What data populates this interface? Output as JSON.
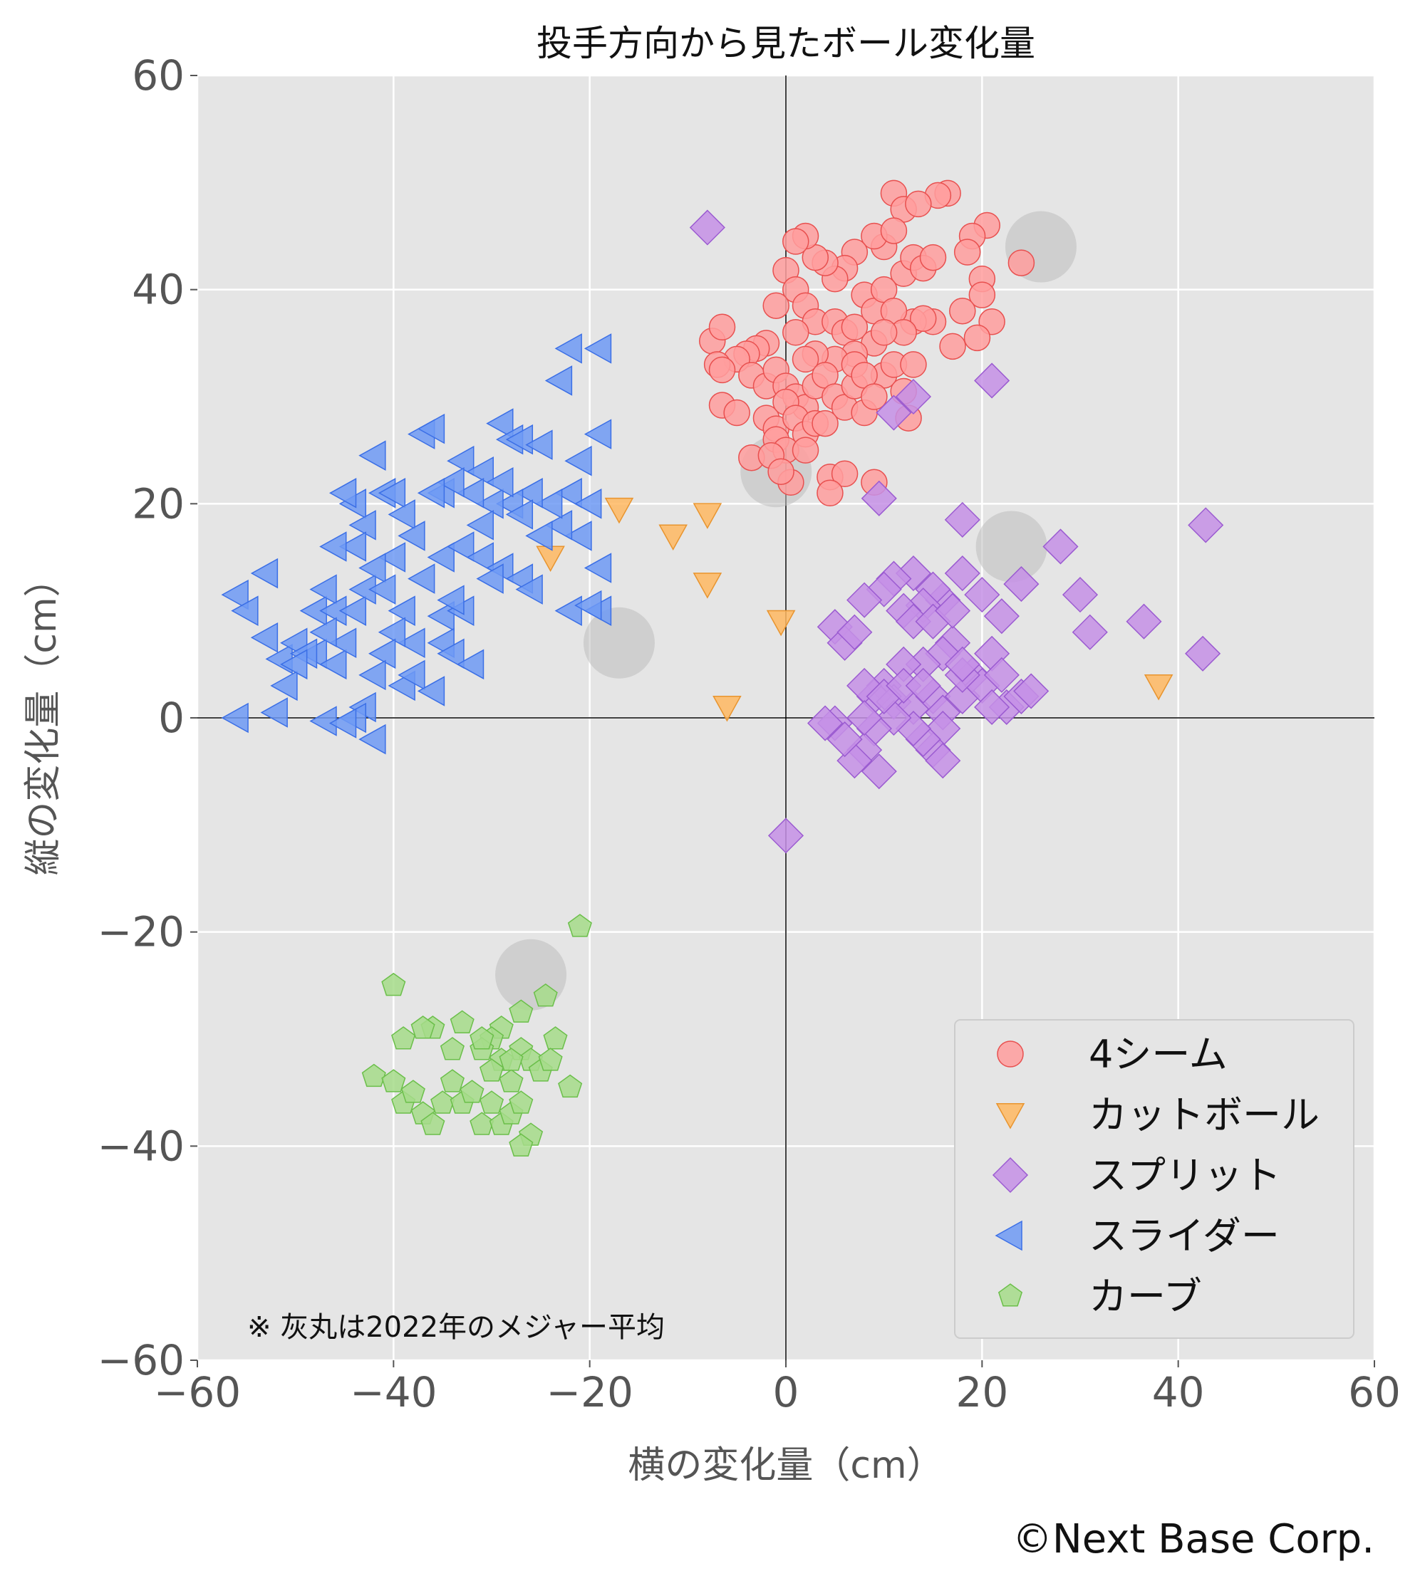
{
  "chart_data": {
    "type": "scatter",
    "title": "投手方向から見たボール変化量",
    "xlabel": "横の変化量（cm）",
    "ylabel": "縦の変化量（cm）",
    "xlim": [
      -60,
      60
    ],
    "ylim": [
      -60,
      60
    ],
    "xticks": [
      -60,
      -40,
      -20,
      0,
      20,
      40,
      60
    ],
    "yticks": [
      -60,
      -40,
      -20,
      0,
      20,
      40,
      60
    ],
    "xtick_labels": [
      "−60",
      "−40",
      "−20",
      "0",
      "20",
      "40",
      "60"
    ],
    "ytick_labels": [
      "−60",
      "−40",
      "−20",
      "0",
      "20",
      "40",
      "60"
    ],
    "grid": true,
    "legend_position": "bottom-right",
    "annotation": "※ 灰丸は2022年のメジャー平均",
    "credit": "©Next Base Corp.",
    "league_average": {
      "color": "#bdbdbd",
      "points": [
        [
          26,
          44
        ],
        [
          23,
          16
        ],
        [
          -1,
          23
        ],
        [
          -17,
          7
        ],
        [
          -26,
          -24
        ]
      ]
    },
    "series": [
      {
        "name": "4シーム",
        "marker": "circle",
        "fill": "#ff9e9e",
        "edge": "#e8504f",
        "points": [
          [
            24,
            42.5
          ],
          [
            16.5,
            49
          ],
          [
            15.5,
            48.8
          ],
          [
            11,
            49
          ],
          [
            12,
            47.5
          ],
          [
            13.5,
            48
          ],
          [
            20.5,
            46
          ],
          [
            19,
            45
          ],
          [
            18.5,
            43.5
          ],
          [
            20,
            41
          ],
          [
            20,
            39.5
          ],
          [
            21,
            37
          ],
          [
            19.5,
            35.5
          ],
          [
            17,
            34.7
          ],
          [
            18,
            38
          ],
          [
            15,
            37
          ],
          [
            13,
            37
          ],
          [
            14,
            37.3
          ],
          [
            12,
            41.5
          ],
          [
            13,
            43
          ],
          [
            14,
            42
          ],
          [
            15,
            43
          ],
          [
            10,
            44
          ],
          [
            9,
            45
          ],
          [
            11,
            45.5
          ],
          [
            7,
            43.5
          ],
          [
            6,
            42
          ],
          [
            5,
            41
          ],
          [
            4,
            42.5
          ],
          [
            3,
            43
          ],
          [
            2,
            45
          ],
          [
            1,
            44.5
          ],
          [
            0,
            41.8
          ],
          [
            1,
            40
          ],
          [
            -1,
            38.5
          ],
          [
            2,
            38.5
          ],
          [
            3,
            37
          ],
          [
            5,
            37
          ],
          [
            6,
            36
          ],
          [
            7,
            36.5
          ],
          [
            8,
            39.5
          ],
          [
            9,
            38
          ],
          [
            10,
            40
          ],
          [
            11,
            38
          ],
          [
            12,
            36
          ],
          [
            9,
            35
          ],
          [
            7,
            34
          ],
          [
            5,
            33.5
          ],
          [
            3,
            34
          ],
          [
            1,
            36
          ],
          [
            2,
            33.5
          ],
          [
            -2,
            35
          ],
          [
            -3,
            34.5
          ],
          [
            -4,
            34
          ],
          [
            -5,
            33.5
          ],
          [
            -7.5,
            35.2
          ],
          [
            -6.5,
            36.5
          ],
          [
            -7,
            33
          ],
          [
            -6.5,
            32.5
          ],
          [
            -3.5,
            32
          ],
          [
            -2,
            31
          ],
          [
            -1,
            32.5
          ],
          [
            0,
            31
          ],
          [
            1,
            30
          ],
          [
            2,
            29
          ],
          [
            3,
            31
          ],
          [
            4,
            32
          ],
          [
            5,
            30
          ],
          [
            6,
            29
          ],
          [
            7,
            31
          ],
          [
            8,
            28.5
          ],
          [
            10,
            32
          ],
          [
            11,
            33
          ],
          [
            12,
            30.5
          ],
          [
            12.5,
            28
          ],
          [
            -6.5,
            29.2
          ],
          [
            -5,
            28.5
          ],
          [
            -2,
            28
          ],
          [
            -1,
            27
          ],
          [
            0,
            29.5
          ],
          [
            1,
            28
          ],
          [
            2,
            26.5
          ],
          [
            3,
            27.5
          ],
          [
            4,
            27.5
          ],
          [
            -1,
            26
          ],
          [
            0,
            25
          ],
          [
            2,
            25
          ],
          [
            -3.5,
            24.3
          ],
          [
            -1.5,
            24.5
          ],
          [
            4.5,
            22.5
          ],
          [
            6,
            22.8
          ],
          [
            4.5,
            21
          ],
          [
            9,
            22
          ],
          [
            0.5,
            22
          ],
          [
            -0.5,
            23
          ],
          [
            7,
            33
          ],
          [
            8,
            32
          ],
          [
            9,
            30
          ],
          [
            13,
            33
          ],
          [
            10,
            36
          ]
        ]
      },
      {
        "name": "カットボール",
        "marker": "triangle-down",
        "fill": "#ffb861",
        "edge": "#e8942e",
        "points": [
          [
            -17,
            19.5
          ],
          [
            -11.5,
            17
          ],
          [
            -8,
            19
          ],
          [
            -8,
            12.5
          ],
          [
            -24,
            15
          ],
          [
            -0.5,
            9
          ],
          [
            -6,
            1
          ],
          [
            38,
            3
          ]
        ]
      },
      {
        "name": "スプリット",
        "marker": "diamond",
        "fill": "#c690e6",
        "edge": "#9b5bd1",
        "points": [
          [
            -8,
            45.8
          ],
          [
            21,
            31.5
          ],
          [
            13,
            30
          ],
          [
            11,
            28.5
          ],
          [
            9.5,
            20.5
          ],
          [
            18,
            18.5
          ],
          [
            28,
            16
          ],
          [
            42.8,
            18
          ],
          [
            30,
            11.5
          ],
          [
            31,
            8
          ],
          [
            36.5,
            9
          ],
          [
            42.5,
            6
          ],
          [
            24,
            12.5
          ],
          [
            22,
            9.5
          ],
          [
            20,
            11.5
          ],
          [
            18,
            13.5
          ],
          [
            16,
            11
          ],
          [
            15,
            12
          ],
          [
            14,
            10.5
          ],
          [
            13,
            13.5
          ],
          [
            11,
            13
          ],
          [
            10,
            12
          ],
          [
            8,
            11
          ],
          [
            5,
            8.5
          ],
          [
            6,
            7
          ],
          [
            7,
            8
          ],
          [
            12,
            10
          ],
          [
            13,
            9
          ],
          [
            15,
            9
          ],
          [
            17,
            7
          ],
          [
            17,
            10
          ],
          [
            16,
            6
          ],
          [
            14,
            5
          ],
          [
            12,
            5
          ],
          [
            10,
            3
          ],
          [
            9,
            2
          ],
          [
            8,
            3
          ],
          [
            11,
            1.5
          ],
          [
            13,
            1
          ],
          [
            15,
            2
          ],
          [
            16,
            0.5
          ],
          [
            18,
            2
          ],
          [
            19,
            4
          ],
          [
            20,
            3
          ],
          [
            21,
            6
          ],
          [
            22,
            4
          ],
          [
            22.5,
            1
          ],
          [
            24,
            2
          ],
          [
            25,
            2.5
          ],
          [
            21,
            1
          ],
          [
            18,
            4
          ],
          [
            16,
            -1
          ],
          [
            15,
            -3
          ],
          [
            14,
            -2
          ],
          [
            16,
            -4
          ],
          [
            13,
            -1
          ],
          [
            11,
            0
          ],
          [
            9,
            -1
          ],
          [
            8,
            -3
          ],
          [
            7,
            -4
          ],
          [
            9.5,
            -5
          ],
          [
            5,
            -0.5
          ],
          [
            4,
            -0.5
          ],
          [
            0,
            -11
          ],
          [
            10,
            2
          ],
          [
            12,
            3
          ],
          [
            14,
            3
          ],
          [
            18,
            5
          ],
          [
            6,
            -2
          ],
          [
            8,
            0
          ]
        ]
      },
      {
        "name": "スライダー",
        "marker": "triangle-left",
        "fill": "#6f9af5",
        "edge": "#3b6fe6",
        "points": [
          [
            -56,
            11.5
          ],
          [
            -55,
            10
          ],
          [
            -53,
            13.5
          ],
          [
            -53,
            7.5
          ],
          [
            -51.5,
            5.5
          ],
          [
            -51,
            3
          ],
          [
            -52,
            0.5
          ],
          [
            -56,
            0
          ],
          [
            -50,
            7
          ],
          [
            -48,
            10
          ],
          [
            -47,
            12
          ],
          [
            -46,
            10
          ],
          [
            -48,
            6
          ],
          [
            -46,
            5
          ],
          [
            -45,
            7
          ],
          [
            -44,
            10
          ],
          [
            -43,
            12
          ],
          [
            -44,
            20
          ],
          [
            -45,
            21
          ],
          [
            -43,
            18
          ],
          [
            -41,
            21
          ],
          [
            -42,
            24.5
          ],
          [
            -40,
            21
          ],
          [
            -39,
            19
          ],
          [
            -37,
            26.5
          ],
          [
            -36,
            27
          ],
          [
            -35,
            21
          ],
          [
            -33,
            24
          ],
          [
            -31,
            23
          ],
          [
            -29,
            27.5
          ],
          [
            -28,
            26
          ],
          [
            -27,
            26
          ],
          [
            -25,
            25.5
          ],
          [
            -23,
            31.5
          ],
          [
            -22,
            34.5
          ],
          [
            -19,
            34.5
          ],
          [
            -19,
            26.5
          ],
          [
            -21,
            24
          ],
          [
            -22,
            21
          ],
          [
            -20,
            20
          ],
          [
            -21,
            17
          ],
          [
            -23,
            18
          ],
          [
            -24,
            20
          ],
          [
            -26,
            21
          ],
          [
            -28,
            20
          ],
          [
            -30,
            20
          ],
          [
            -32,
            21
          ],
          [
            -34,
            22
          ],
          [
            -36,
            21
          ],
          [
            -38,
            17
          ],
          [
            -40,
            15
          ],
          [
            -42,
            14
          ],
          [
            -44,
            16
          ],
          [
            -41,
            12
          ],
          [
            -39,
            10
          ],
          [
            -37,
            13
          ],
          [
            -35,
            15
          ],
          [
            -33,
            16
          ],
          [
            -31,
            15
          ],
          [
            -29,
            14
          ],
          [
            -27,
            13
          ],
          [
            -26,
            12
          ],
          [
            -30,
            13
          ],
          [
            -35,
            9.5
          ],
          [
            -33,
            10
          ],
          [
            -34,
            11
          ],
          [
            -38,
            7
          ],
          [
            -40,
            8
          ],
          [
            -41,
            6
          ],
          [
            -42,
            4
          ],
          [
            -39,
            3
          ],
          [
            -38,
            4
          ],
          [
            -35,
            7
          ],
          [
            -34,
            6
          ],
          [
            -32,
            5
          ],
          [
            -36,
            2.5
          ],
          [
            -43,
            1
          ],
          [
            -44,
            0
          ],
          [
            -47,
            -0.3
          ],
          [
            -42,
            -2
          ],
          [
            -45,
            -0.5
          ],
          [
            -19,
            14
          ],
          [
            -19,
            10
          ],
          [
            -22,
            10
          ],
          [
            -20,
            10.5
          ],
          [
            -25,
            17
          ],
          [
            -31,
            18
          ],
          [
            -29,
            22
          ],
          [
            -27,
            19
          ],
          [
            -46,
            16
          ],
          [
            -47,
            8
          ],
          [
            -49,
            6
          ],
          [
            -50,
            5
          ]
        ]
      },
      {
        "name": "カーブ",
        "marker": "pentagon",
        "fill": "#a6dc8a",
        "edge": "#6bbf4a",
        "points": [
          [
            -21,
            -19.5
          ],
          [
            -40,
            -25
          ],
          [
            -24.5,
            -26
          ],
          [
            -27,
            -27.5
          ],
          [
            -23.5,
            -30
          ],
          [
            -22,
            -34.5
          ],
          [
            -27,
            -31
          ],
          [
            -29,
            -29
          ],
          [
            -30,
            -30
          ],
          [
            -31,
            -31
          ],
          [
            -33,
            -28.5
          ],
          [
            -34,
            -31
          ],
          [
            -36,
            -29
          ],
          [
            -37,
            -29
          ],
          [
            -39,
            -30
          ],
          [
            -42,
            -33.5
          ],
          [
            -40,
            -34
          ],
          [
            -39,
            -36
          ],
          [
            -38,
            -35
          ],
          [
            -37,
            -37
          ],
          [
            -36,
            -38
          ],
          [
            -35,
            -36
          ],
          [
            -34,
            -34
          ],
          [
            -33,
            -36
          ],
          [
            -32,
            -35
          ],
          [
            -31,
            -38
          ],
          [
            -30,
            -36
          ],
          [
            -29,
            -38
          ],
          [
            -28,
            -37
          ],
          [
            -27,
            -36
          ],
          [
            -26,
            -39
          ],
          [
            -27,
            -40
          ],
          [
            -26,
            -32
          ],
          [
            -25,
            -33
          ],
          [
            -28,
            -34
          ],
          [
            -29,
            -32
          ],
          [
            -30,
            -33
          ],
          [
            -31,
            -30
          ],
          [
            -28,
            -32
          ],
          [
            -24,
            -32
          ]
        ]
      }
    ]
  }
}
